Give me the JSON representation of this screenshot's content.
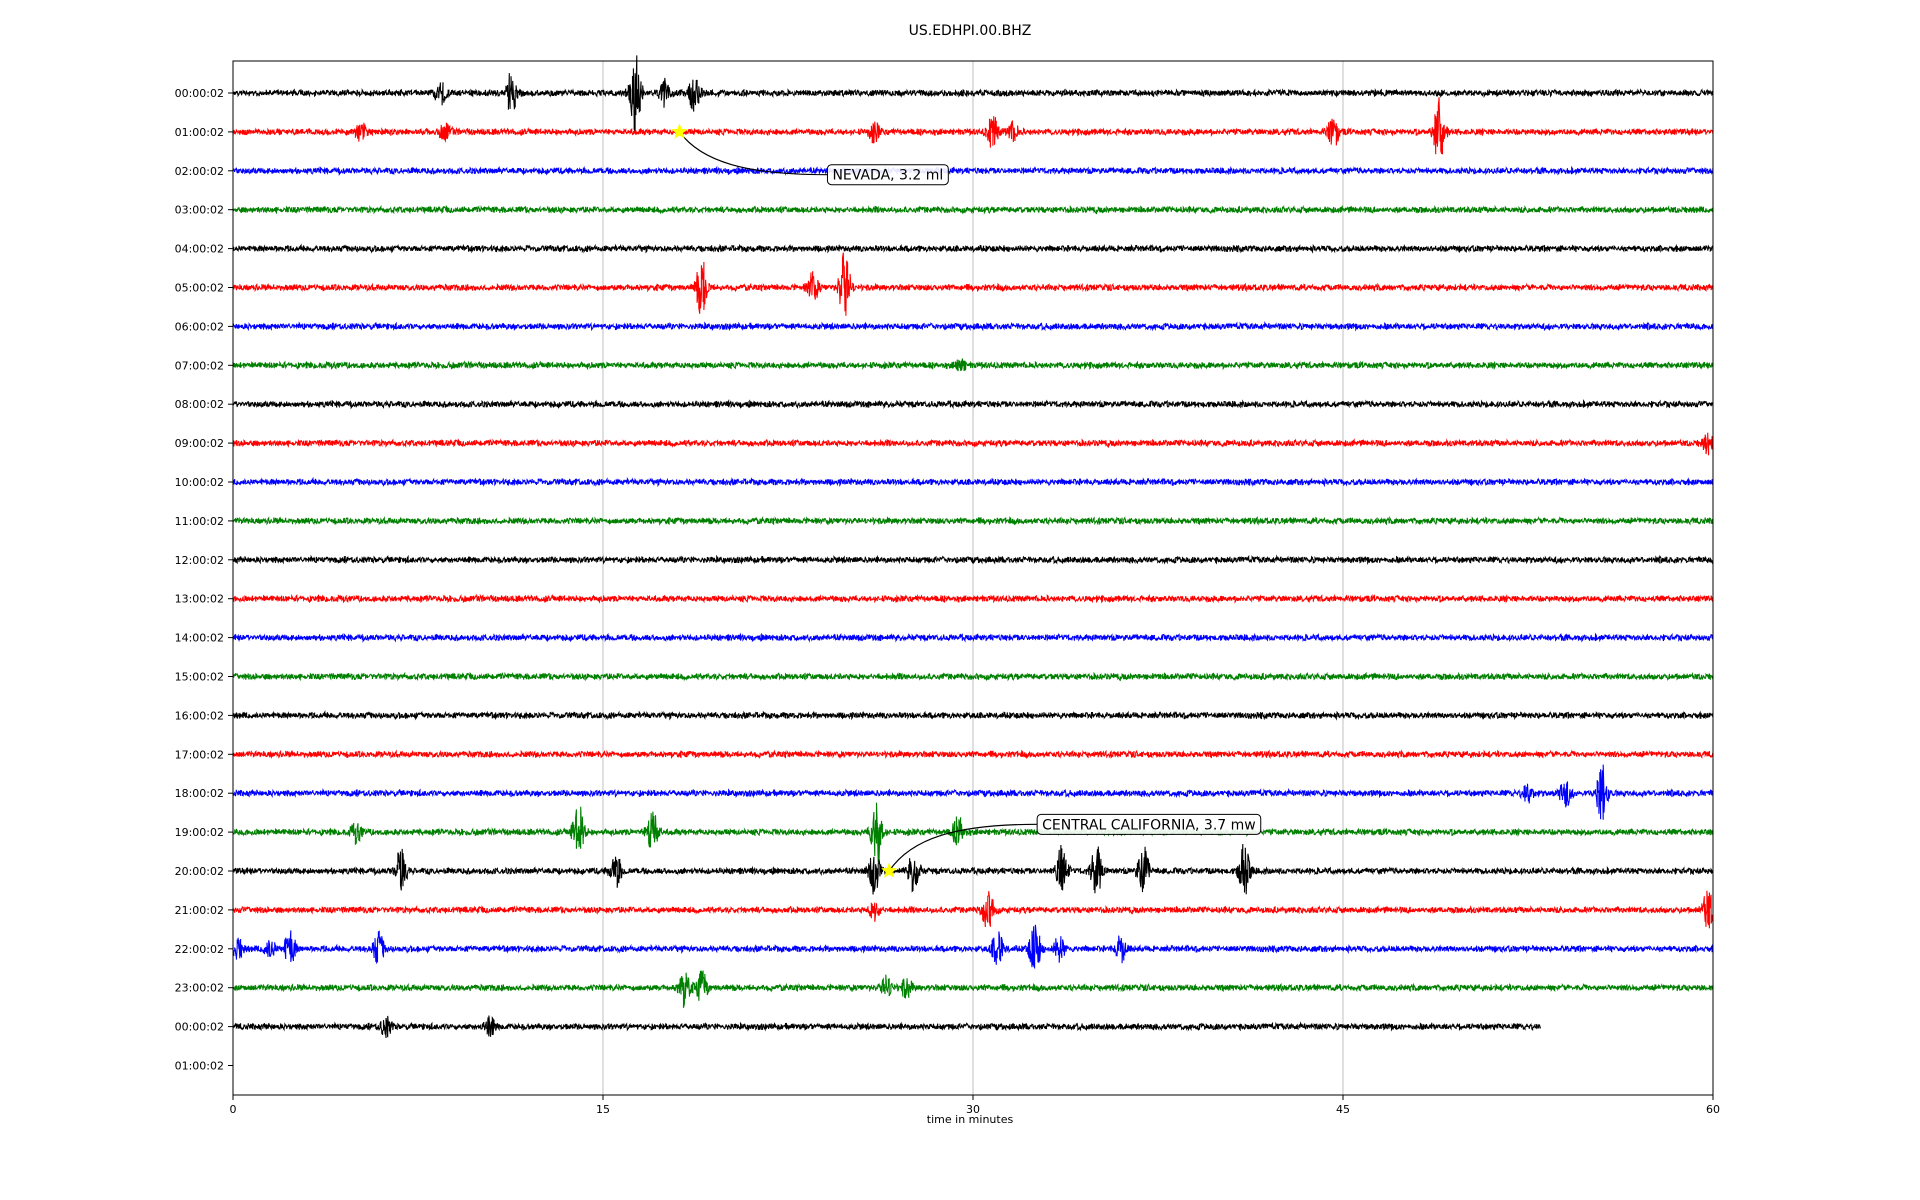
{
  "chart_data": {
    "type": "line",
    "title": "US.EDHPI.00.BHZ",
    "xlabel": "time in minutes",
    "ylabel": "",
    "xlim": [
      0,
      60
    ],
    "xticks": [
      0,
      15,
      30,
      45,
      60
    ],
    "x_grid": true,
    "y_grid": false,
    "legend": "none",
    "row_labels": [
      "00:00:02",
      "01:00:02",
      "02:00:02",
      "03:00:02",
      "04:00:02",
      "05:00:02",
      "06:00:02",
      "07:00:02",
      "08:00:02",
      "09:00:02",
      "10:00:02",
      "11:00:02",
      "12:00:02",
      "13:00:02",
      "14:00:02",
      "15:00:02",
      "16:00:02",
      "17:00:02",
      "18:00:02",
      "19:00:02",
      "20:00:02",
      "21:00:02",
      "22:00:02",
      "23:00:02",
      "00:00:02",
      "01:00:02"
    ],
    "color_cycle": [
      "#000000",
      "#ff0000",
      "#0000ff",
      "#008000"
    ],
    "series": [
      {
        "row": 0,
        "x_end": 60,
        "bursts": [
          {
            "x": 8.4,
            "amp": 0.4
          },
          {
            "x": 11.3,
            "amp": 0.7
          },
          {
            "x": 16.3,
            "amp": 1.3
          },
          {
            "x": 17.5,
            "amp": 0.4
          },
          {
            "x": 18.7,
            "amp": 0.6
          }
        ]
      },
      {
        "row": 1,
        "x_end": 60,
        "bursts": [
          {
            "x": 5.2,
            "amp": 0.3
          },
          {
            "x": 8.6,
            "amp": 0.25
          },
          {
            "x": 26,
            "amp": 0.3
          },
          {
            "x": 30.8,
            "amp": 0.5
          },
          {
            "x": 31.6,
            "amp": 0.3
          },
          {
            "x": 44.6,
            "amp": 0.5
          },
          {
            "x": 48.9,
            "amp": 1.1
          }
        ]
      },
      {
        "row": 2,
        "x_end": 60,
        "bursts": []
      },
      {
        "row": 3,
        "x_end": 60,
        "bursts": []
      },
      {
        "row": 4,
        "x_end": 60,
        "bursts": []
      },
      {
        "row": 5,
        "x_end": 60,
        "bursts": [
          {
            "x": 19,
            "amp": 0.9
          },
          {
            "x": 23.5,
            "amp": 0.5
          },
          {
            "x": 24.8,
            "amp": 1.2
          }
        ]
      },
      {
        "row": 6,
        "x_end": 60,
        "bursts": []
      },
      {
        "row": 7,
        "x_end": 60,
        "bursts": [
          {
            "x": 29.5,
            "amp": 0.2
          }
        ]
      },
      {
        "row": 8,
        "x_end": 60,
        "bursts": []
      },
      {
        "row": 9,
        "x_end": 60,
        "bursts": [
          {
            "x": 59.8,
            "amp": 0.3
          }
        ]
      },
      {
        "row": 10,
        "x_end": 60,
        "bursts": []
      },
      {
        "row": 11,
        "x_end": 60,
        "bursts": []
      },
      {
        "row": 12,
        "x_end": 60,
        "bursts": []
      },
      {
        "row": 13,
        "x_end": 60,
        "bursts": []
      },
      {
        "row": 14,
        "x_end": 60,
        "bursts": []
      },
      {
        "row": 15,
        "x_end": 60,
        "bursts": []
      },
      {
        "row": 16,
        "x_end": 60,
        "bursts": []
      },
      {
        "row": 17,
        "x_end": 60,
        "bursts": []
      },
      {
        "row": 18,
        "x_end": 60,
        "bursts": [
          {
            "x": 52.5,
            "amp": 0.3
          },
          {
            "x": 54,
            "amp": 0.45
          },
          {
            "x": 55.5,
            "amp": 0.9
          }
        ]
      },
      {
        "row": 19,
        "x_end": 60,
        "bursts": [
          {
            "x": 5,
            "amp": 0.3
          },
          {
            "x": 14,
            "amp": 0.9
          },
          {
            "x": 17,
            "amp": 0.7
          },
          {
            "x": 26.1,
            "amp": 1.1
          },
          {
            "x": 29.4,
            "amp": 0.5
          }
        ]
      },
      {
        "row": 20,
        "x_end": 60,
        "bursts": [
          {
            "x": 6.8,
            "amp": 0.7
          },
          {
            "x": 15.5,
            "amp": 0.6
          },
          {
            "x": 26,
            "amp": 0.7
          },
          {
            "x": 27.6,
            "amp": 0.7
          },
          {
            "x": 33.6,
            "amp": 0.8
          },
          {
            "x": 35,
            "amp": 0.8
          },
          {
            "x": 36.9,
            "amp": 0.8
          },
          {
            "x": 41,
            "amp": 0.9
          }
        ]
      },
      {
        "row": 21,
        "x_end": 60,
        "bursts": [
          {
            "x": 26,
            "amp": 0.3
          },
          {
            "x": 30.6,
            "amp": 0.7
          },
          {
            "x": 59.8,
            "amp": 0.6
          }
        ]
      },
      {
        "row": 22,
        "x_end": 60,
        "bursts": [
          {
            "x": 0.2,
            "amp": 0.3
          },
          {
            "x": 1.5,
            "amp": 0.3
          },
          {
            "x": 2.3,
            "amp": 0.6
          },
          {
            "x": 5.9,
            "amp": 0.5
          },
          {
            "x": 31,
            "amp": 0.6
          },
          {
            "x": 32.5,
            "amp": 0.8
          },
          {
            "x": 33.5,
            "amp": 0.4
          },
          {
            "x": 36,
            "amp": 0.4
          }
        ]
      },
      {
        "row": 23,
        "x_end": 60,
        "bursts": [
          {
            "x": 18.3,
            "amp": 0.6
          },
          {
            "x": 19,
            "amp": 0.5
          },
          {
            "x": 26.5,
            "amp": 0.4
          },
          {
            "x": 27.3,
            "amp": 0.3
          }
        ]
      },
      {
        "row": 24,
        "x_end": 53,
        "bursts": [
          {
            "x": 6.2,
            "amp": 0.3
          },
          {
            "x": 10.4,
            "amp": 0.3
          }
        ]
      }
    ],
    "annotations": [
      {
        "text": "NEVADA, 3.2 ml",
        "row": 1,
        "x": 18.1,
        "label_row": 2.1,
        "label_x": 24.1
      },
      {
        "text": "CENTRAL CALIFORNIA, 3.7 mw",
        "row": 20,
        "x": 26.6,
        "label_row": 18.8,
        "label_x": 32.6
      }
    ]
  }
}
